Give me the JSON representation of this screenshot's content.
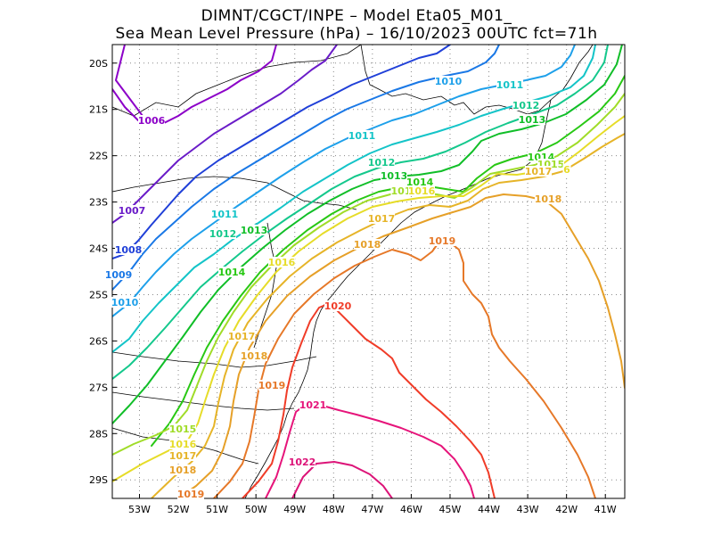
{
  "title_line1": "DIMNT/CGCT/INPE –  Model Eta05_M01_",
  "title_line2": "Sea Mean Level Pressure (hPa) – 16/10/2023 00UTC fct=71h",
  "chart_data": {
    "type": "contour-map",
    "variable": "Sea Mean Level Pressure (hPa)",
    "xlim": [
      -53.7,
      -40.5
    ],
    "ylim": [
      -29.4,
      -19.6
    ],
    "x_ticks": [
      "53W",
      "52W",
      "51W",
      "50W",
      "49W",
      "48W",
      "47W",
      "46W",
      "45W",
      "44W",
      "43W",
      "42W",
      "41W"
    ],
    "y_ticks": [
      "20S",
      "21S",
      "22S",
      "23S",
      "24S",
      "25S",
      "26S",
      "27S",
      "28S",
      "29S"
    ],
    "contours": [
      {
        "level": 1006,
        "color": "#8c00c8",
        "labels": [
          "1006"
        ]
      },
      {
        "level": 1007,
        "color": "#6a1cc8",
        "labels": [
          "1007"
        ]
      },
      {
        "level": 1008,
        "color": "#2040d8",
        "labels": [
          "1008"
        ]
      },
      {
        "level": 1009,
        "color": "#1a78e6",
        "labels": [
          "1009"
        ]
      },
      {
        "level": 1010,
        "color": "#1ea0ea",
        "labels": [
          "1010",
          "1010"
        ]
      },
      {
        "level": 1011,
        "color": "#14c4c8",
        "labels": [
          "1011",
          "1011",
          "1011"
        ]
      },
      {
        "level": 1012,
        "color": "#14c88c",
        "labels": [
          "1012",
          "1012",
          "1012"
        ]
      },
      {
        "level": 1013,
        "color": "#10be28",
        "labels": [
          "1013",
          "1013",
          "1013"
        ]
      },
      {
        "level": 1014,
        "color": "#28c814",
        "labels": [
          "1014",
          "1014",
          "1014"
        ]
      },
      {
        "level": 1015,
        "color": "#a0dc28",
        "labels": [
          "1015",
          "101",
          "1015"
        ]
      },
      {
        "level": 1016,
        "color": "#e6dc28",
        "labels": [
          "1016",
          "1016",
          "1016",
          "6"
        ]
      },
      {
        "level": 1017,
        "color": "#e6b428",
        "labels": [
          "1017",
          "1017",
          "1017",
          "1017"
        ]
      },
      {
        "level": 1018,
        "color": "#e6a028",
        "labels": [
          "1018",
          "1018",
          "1018",
          "1018"
        ]
      },
      {
        "level": 1019,
        "color": "#e67828",
        "labels": [
          "1019",
          "1019",
          "1019"
        ]
      },
      {
        "level": 1020,
        "color": "#f03c28",
        "labels": [
          "1020"
        ]
      },
      {
        "level": 1021,
        "color": "#e6147a",
        "labels": [
          "1021"
        ]
      },
      {
        "level": 1022,
        "color": "#dc1478",
        "labels": [
          "1022"
        ]
      }
    ],
    "grid": true
  }
}
